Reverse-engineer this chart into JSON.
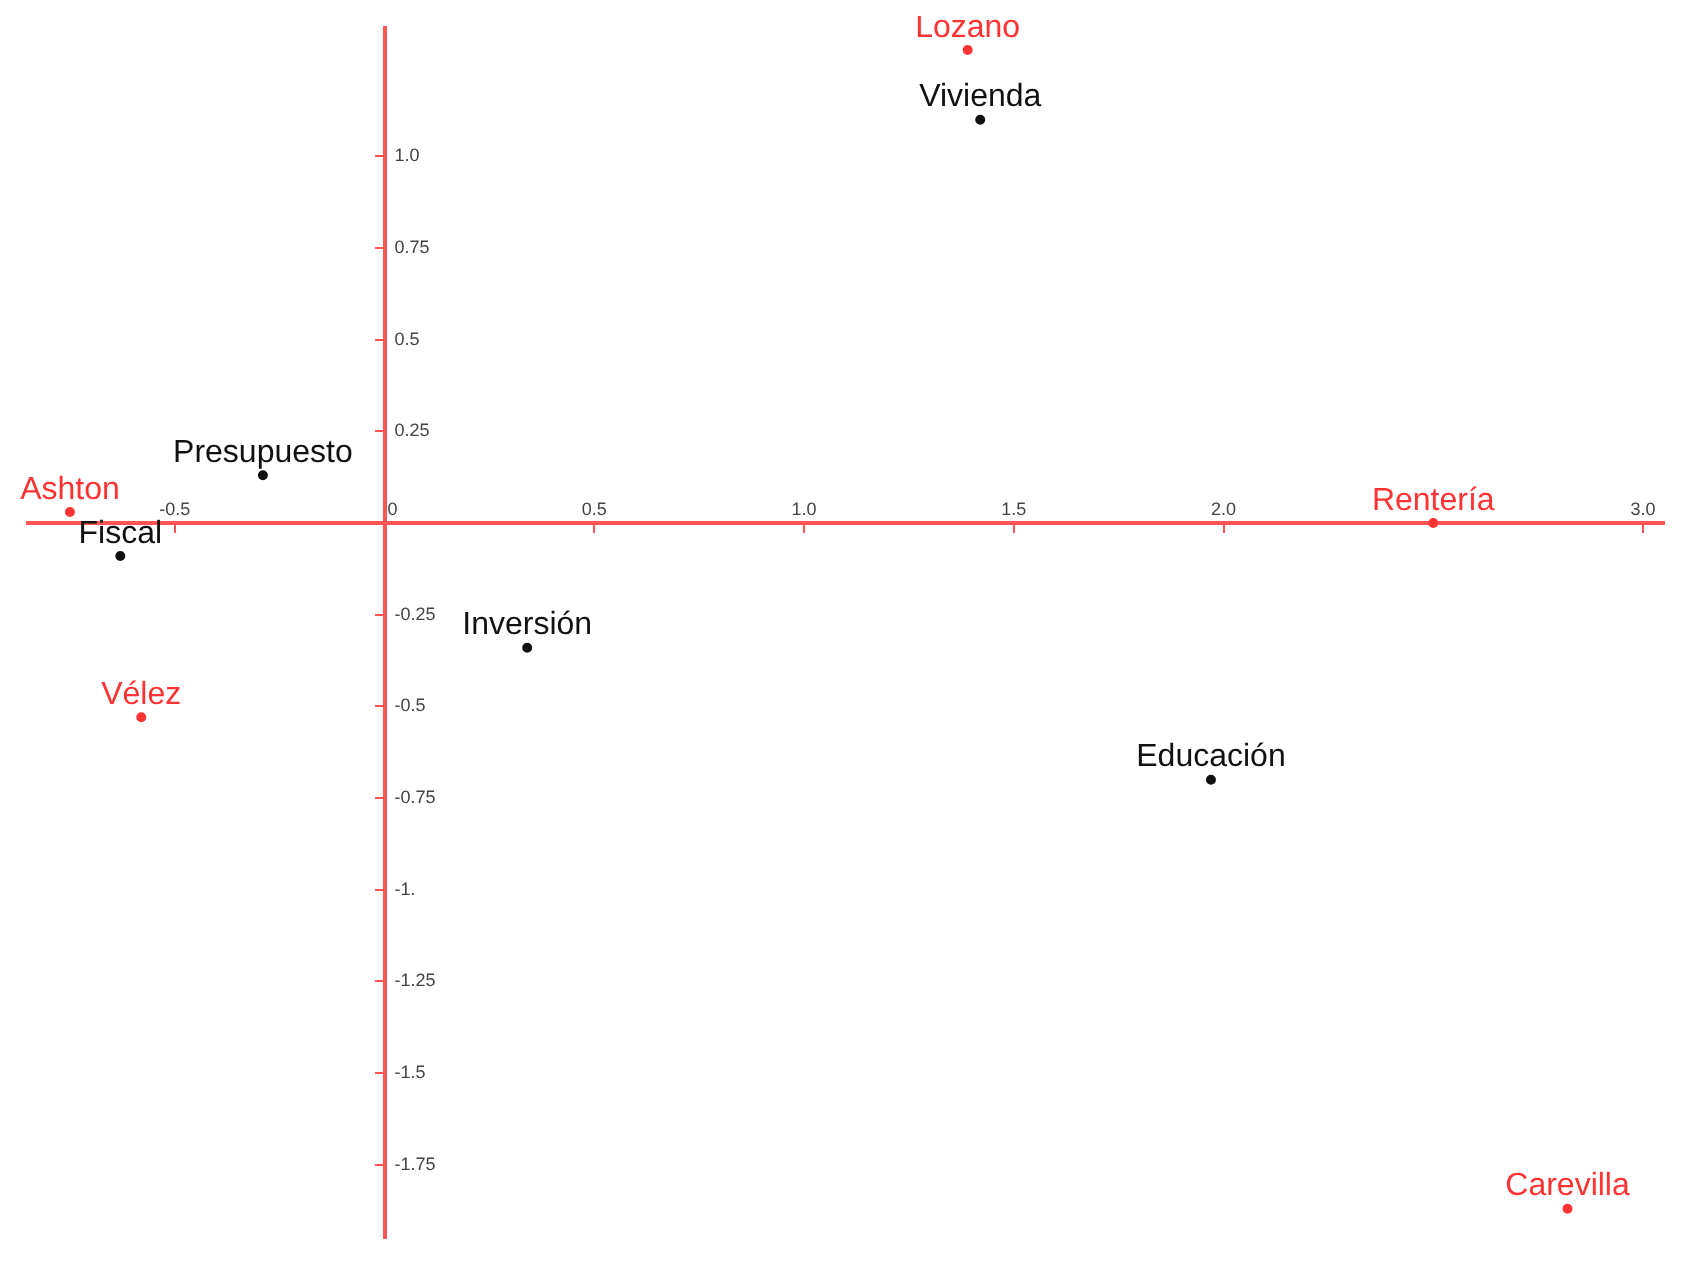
{
  "chart_data": {
    "type": "scatter",
    "marker": "circle",
    "legend": false,
    "grid": false,
    "xlim": [
      -0.85,
      3.05
    ],
    "ylim": [
      -1.95,
      1.35
    ],
    "xticks": [
      -0.5,
      0,
      {
        "value": 0.5,
        "label": "0.5"
      },
      {
        "value": 1,
        "label": "1.0"
      },
      {
        "value": 1.5,
        "label": "1.5"
      },
      {
        "value": 2,
        "label": "2.0"
      },
      {
        "value": 3,
        "label": "3.0"
      }
    ],
    "yticks": [
      {
        "value": 1,
        "label": "1.0"
      },
      0.75,
      0.5,
      0.25,
      -0.25,
      -0.5,
      -0.75,
      {
        "value": -1,
        "label": "-1."
      },
      -1.25,
      -1.5,
      -1.75
    ],
    "series": [
      {
        "name": "Lozano",
        "color": "#ff3333",
        "x": [
          1.39
        ],
        "values": [
          1.29
        ]
      },
      {
        "name": "Vivienda",
        "color": "#111111",
        "x": [
          1.42
        ],
        "values": [
          1.1
        ]
      },
      {
        "name": "Presupuesto",
        "color": "#111111",
        "x": [
          -0.29
        ],
        "values": [
          0.13
        ]
      },
      {
        "name": "Ashton",
        "color": "#ff3333",
        "x": [
          -0.75
        ],
        "values": [
          0.03
        ]
      },
      {
        "name": "Fiscal",
        "color": "#111111",
        "x": [
          -0.63
        ],
        "values": [
          -0.09
        ]
      },
      {
        "name": "Rentería",
        "color": "#ff3333",
        "x": [
          2.5
        ],
        "values": [
          0
        ]
      },
      {
        "name": "Inversión",
        "color": "#111111",
        "x": [
          0.34
        ],
        "values": [
          -0.34
        ]
      },
      {
        "name": "Vélez",
        "color": "#ff3333",
        "x": [
          -0.58
        ],
        "values": [
          -0.53
        ]
      },
      {
        "name": "Educación",
        "color": "#111111",
        "x": [
          1.97
        ],
        "values": [
          -0.7
        ]
      },
      {
        "name": "Carevilla",
        "color": "#ff3333",
        "x": [
          2.82
        ],
        "values": [
          -1.87
        ]
      }
    ]
  }
}
